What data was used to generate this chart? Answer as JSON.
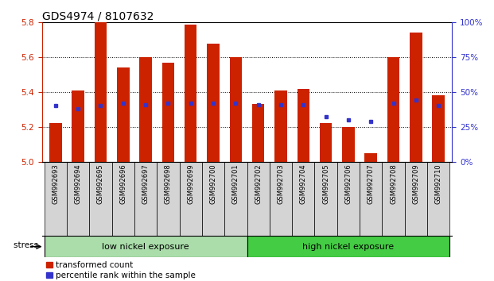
{
  "title": "GDS4974 / 8107632",
  "samples": [
    "GSM992693",
    "GSM992694",
    "GSM992695",
    "GSM992696",
    "GSM992697",
    "GSM992698",
    "GSM992699",
    "GSM992700",
    "GSM992701",
    "GSM992702",
    "GSM992703",
    "GSM992704",
    "GSM992705",
    "GSM992706",
    "GSM992707",
    "GSM992708",
    "GSM992709",
    "GSM992710"
  ],
  "red_values": [
    5.22,
    5.41,
    5.8,
    5.54,
    5.6,
    5.57,
    5.79,
    5.68,
    5.6,
    5.33,
    5.41,
    5.42,
    5.22,
    5.2,
    5.05,
    5.6,
    5.74,
    5.38
  ],
  "blue_percentiles": [
    40,
    38,
    40,
    42,
    41,
    42,
    42,
    42,
    42,
    41,
    41,
    41,
    32,
    30,
    29,
    42,
    44,
    40
  ],
  "ymin": 5.0,
  "ymax": 5.8,
  "yticks": [
    5.0,
    5.2,
    5.4,
    5.6,
    5.8
  ],
  "right_yticks": [
    0,
    25,
    50,
    75,
    100
  ],
  "right_yticklabels": [
    "0%",
    "25%",
    "50%",
    "75%",
    "100%"
  ],
  "bar_color": "#cc2200",
  "blue_color": "#3333cc",
  "group1_label": "low nickel exposure",
  "group2_label": "high nickel exposure",
  "group1_count": 9,
  "stress_label": "stress ",
  "legend1": "transformed count",
  "legend2": "percentile rank within the sample",
  "bg_gray": "#d4d4d4",
  "bg_green1": "#aaddaa",
  "bg_green2": "#44cc44",
  "fig_width": 6.21,
  "fig_height": 3.54,
  "dpi": 100
}
